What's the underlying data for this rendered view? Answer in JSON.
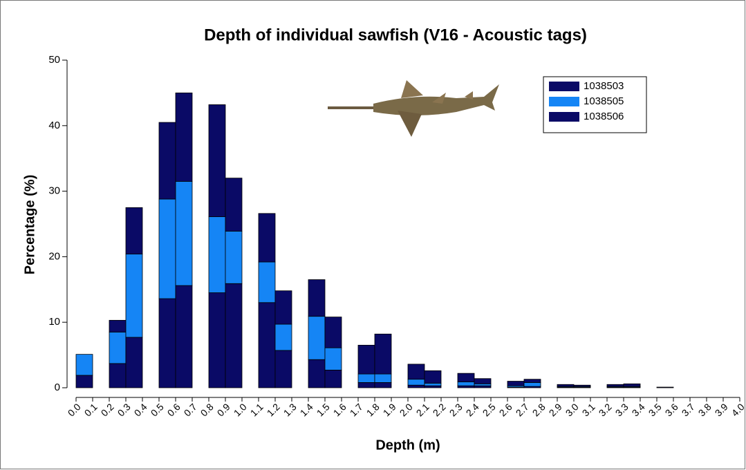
{
  "chart_data": {
    "type": "stacked-histogram",
    "title": "Depth of individual sawfish (V16 - Acoustic tags)",
    "x_label": "Depth (m)",
    "y_label": "Percentage (%)",
    "bins": [
      0,
      0.1,
      0.2,
      0.3,
      0.4,
      0.5,
      0.6,
      0.7,
      0.8,
      0.9,
      1,
      1.1,
      1.2,
      1.3,
      1.4,
      1.5,
      1.6,
      1.7,
      1.8,
      1.9,
      2,
      2.1,
      2.2,
      2.3,
      2.4,
      2.5,
      2.6,
      2.7,
      2.8,
      2.9,
      3,
      3.1,
      3.2,
      3.3,
      3.4,
      3.5,
      3.6,
      3.7,
      3.8,
      3.9,
      4
    ],
    "series": [
      {
        "name": "1038503",
        "color": "#0a0a66",
        "values": [
          1.9,
          0,
          3.7,
          7.7,
          0,
          13.6,
          15.6,
          0,
          14.5,
          15.9,
          0,
          13.0,
          5.7,
          0,
          4.3,
          2.7,
          0,
          0.8,
          0.8,
          0,
          0.4,
          0.3,
          0,
          0.3,
          0.3,
          0,
          0.1,
          0.2,
          0,
          0.1,
          0.1,
          0,
          0.1,
          0.1,
          0,
          0,
          0,
          0,
          0,
          0
        ]
      },
      {
        "name": "1038505",
        "color": "#1585f5",
        "values": [
          3.2,
          0,
          4.8,
          12.7,
          0,
          15.2,
          15.9,
          0,
          11.6,
          8.0,
          0,
          6.2,
          4.0,
          0,
          6.6,
          3.4,
          0,
          1.3,
          1.3,
          0,
          0.9,
          0.4,
          0,
          0.6,
          0.3,
          0,
          0.2,
          0.6,
          0,
          0.1,
          0.1,
          0,
          0.1,
          0.1,
          0,
          0,
          0,
          0,
          0,
          0
        ]
      },
      {
        "name": "1038506",
        "color": "#0a0a66",
        "values": [
          0,
          0,
          1.8,
          7.1,
          0,
          11.7,
          13.5,
          0,
          17.1,
          8.1,
          0,
          7.4,
          5.1,
          0,
          5.6,
          4.7,
          0,
          4.4,
          6.1,
          0,
          2.3,
          1.9,
          0,
          1.3,
          0.8,
          0,
          0.7,
          0.5,
          0,
          0.3,
          0.2,
          0,
          0.3,
          0.4,
          0,
          0.1,
          0,
          0,
          0,
          0
        ]
      }
    ],
    "xlim": [
      0,
      4
    ],
    "ylim": [
      0,
      50
    ],
    "xticks": [
      {
        "value": 0,
        "label": "0.0"
      },
      {
        "value": 0.1,
        "label": "0.1"
      },
      {
        "value": 0.2,
        "label": "0.2"
      },
      {
        "value": 0.3,
        "label": "0.3"
      },
      {
        "value": 0.4,
        "label": "0.4"
      },
      {
        "value": 0.5,
        "label": "0.5"
      },
      {
        "value": 0.6,
        "label": "0.6"
      },
      {
        "value": 0.7,
        "label": "0.7"
      },
      {
        "value": 0.8,
        "label": "0.8"
      },
      {
        "value": 0.9,
        "label": "0.9"
      },
      {
        "value": 1,
        "label": "1.0"
      },
      {
        "value": 1.1,
        "label": "1.1"
      },
      {
        "value": 1.2,
        "label": "1.2"
      },
      {
        "value": 1.3,
        "label": "1.3"
      },
      {
        "value": 1.4,
        "label": "1.4"
      },
      {
        "value": 1.5,
        "label": "1.5"
      },
      {
        "value": 1.6,
        "label": "1.6"
      },
      {
        "value": 1.7,
        "label": "1.7"
      },
      {
        "value": 1.8,
        "label": "1.8"
      },
      {
        "value": 1.9,
        "label": "1.9"
      },
      {
        "value": 2,
        "label": "2.0"
      },
      {
        "value": 2.1,
        "label": "2.1"
      },
      {
        "value": 2.2,
        "label": "2.2"
      },
      {
        "value": 2.3,
        "label": "2.3"
      },
      {
        "value": 2.4,
        "label": "2.4"
      },
      {
        "value": 2.5,
        "label": "2.5"
      },
      {
        "value": 2.6,
        "label": "2.6"
      },
      {
        "value": 2.7,
        "label": "2.7"
      },
      {
        "value": 2.8,
        "label": "2.8"
      },
      {
        "value": 2.9,
        "label": "2.9"
      },
      {
        "value": 3,
        "label": "3.0"
      },
      {
        "value": 3.1,
        "label": "3.1"
      },
      {
        "value": 3.2,
        "label": "3.2"
      },
      {
        "value": 3.3,
        "label": "3.3"
      },
      {
        "value": 3.4,
        "label": "3.4"
      },
      {
        "value": 3.5,
        "label": "3.5"
      },
      {
        "value": 3.6,
        "label": "3.6"
      },
      {
        "value": 3.7,
        "label": "3.7"
      },
      {
        "value": 3.8,
        "label": "3.8"
      },
      {
        "value": 3.9,
        "label": "3.9"
      },
      {
        "value": 4,
        "label": "4.0"
      }
    ],
    "yticks": [
      0,
      10,
      20,
      30,
      40,
      50
    ],
    "grid": false,
    "legend_position": "upper right"
  }
}
